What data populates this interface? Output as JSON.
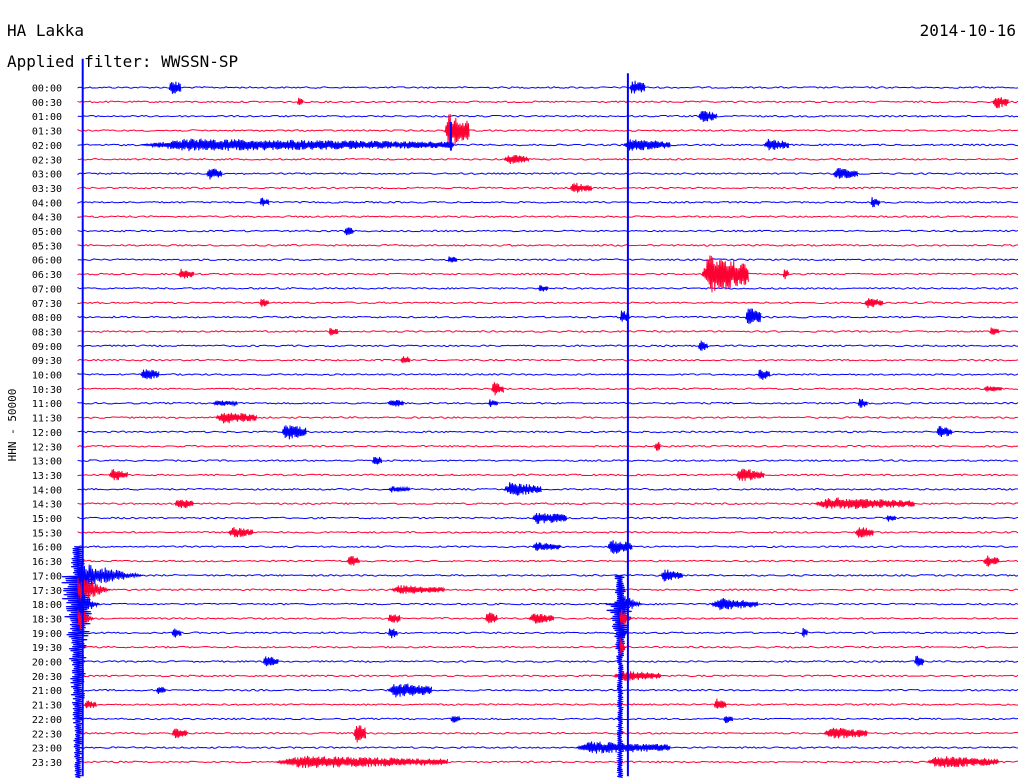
{
  "header": {
    "station": "HA Lakka",
    "date": "2014-10-16",
    "filter": "Applied filter: WWSSN-SP"
  },
  "chart_data": {
    "type": "line",
    "title": "",
    "ylabel": "HHN - 50000",
    "xlabel": "",
    "row_labels": [
      "00:00",
      "00:30",
      "01:00",
      "01:30",
      "02:00",
      "02:30",
      "03:00",
      "03:30",
      "04:00",
      "04:30",
      "05:00",
      "05:30",
      "06:00",
      "06:30",
      "07:00",
      "07:30",
      "08:00",
      "08:30",
      "09:00",
      "09:30",
      "10:00",
      "10:30",
      "11:00",
      "11:30",
      "12:00",
      "12:30",
      "13:00",
      "13:30",
      "14:00",
      "14:30",
      "15:00",
      "15:30",
      "16:00",
      "16:30",
      "17:00",
      "17:30",
      "18:00",
      "18:30",
      "19:00",
      "19:30",
      "20:00",
      "20:30",
      "21:00",
      "21:30",
      "22:00",
      "22:30",
      "23:00",
      "23:30"
    ],
    "row_colors": [
      "#0000ff",
      "#ff0033"
    ],
    "row_minutes": 30,
    "grid": false,
    "events": [
      {
        "row": 0,
        "minute": 2.9,
        "amp": 1.0,
        "dur": 0.4
      },
      {
        "row": 0,
        "minute": 17.6,
        "amp": 1.0,
        "dur": 0.5
      },
      {
        "row": 1,
        "minute": 7.0,
        "amp": 0.7,
        "dur": 0.2
      },
      {
        "row": 1,
        "minute": 29.2,
        "amp": 0.9,
        "dur": 0.5
      },
      {
        "row": 2,
        "minute": 19.8,
        "amp": 0.8,
        "dur": 0.6
      },
      {
        "row": 3,
        "minute": 11.7,
        "amp": 2.2,
        "dur": 0.8
      },
      {
        "row": 4,
        "minute": 2.0,
        "amp": 0.8,
        "dur": 10.0
      },
      {
        "row": 4,
        "minute": 17.4,
        "amp": 0.8,
        "dur": 1.5
      },
      {
        "row": 4,
        "minute": 21.9,
        "amp": 0.8,
        "dur": 0.8
      },
      {
        "row": 5,
        "minute": 13.6,
        "amp": 0.7,
        "dur": 0.8
      },
      {
        "row": 6,
        "minute": 4.1,
        "amp": 0.8,
        "dur": 0.5
      },
      {
        "row": 6,
        "minute": 24.1,
        "amp": 0.8,
        "dur": 0.8
      },
      {
        "row": 7,
        "minute": 15.7,
        "amp": 0.7,
        "dur": 0.7
      },
      {
        "row": 8,
        "minute": 5.8,
        "amp": 0.7,
        "dur": 0.3
      },
      {
        "row": 8,
        "minute": 25.3,
        "amp": 0.7,
        "dur": 0.3
      },
      {
        "row": 10,
        "minute": 8.5,
        "amp": 0.6,
        "dur": 0.3
      },
      {
        "row": 12,
        "minute": 11.8,
        "amp": 0.5,
        "dur": 0.3
      },
      {
        "row": 13,
        "minute": 3.2,
        "amp": 0.7,
        "dur": 0.5
      },
      {
        "row": 13,
        "minute": 19.9,
        "amp": 2.5,
        "dur": 1.5
      },
      {
        "row": 13,
        "minute": 22.5,
        "amp": 0.8,
        "dur": 0.2
      },
      {
        "row": 14,
        "minute": 14.7,
        "amp": 0.5,
        "dur": 0.3
      },
      {
        "row": 15,
        "minute": 5.8,
        "amp": 0.6,
        "dur": 0.3
      },
      {
        "row": 15,
        "minute": 25.1,
        "amp": 0.7,
        "dur": 0.6
      },
      {
        "row": 16,
        "minute": 17.3,
        "amp": 0.9,
        "dur": 0.3
      },
      {
        "row": 16,
        "minute": 21.3,
        "amp": 1.3,
        "dur": 0.5
      },
      {
        "row": 17,
        "minute": 8.0,
        "amp": 0.6,
        "dur": 0.3
      },
      {
        "row": 17,
        "minute": 29.1,
        "amp": 0.7,
        "dur": 0.3
      },
      {
        "row": 18,
        "minute": 19.8,
        "amp": 0.8,
        "dur": 0.3
      },
      {
        "row": 19,
        "minute": 10.3,
        "amp": 0.7,
        "dur": 0.3
      },
      {
        "row": 20,
        "minute": 2.0,
        "amp": 0.8,
        "dur": 0.6
      },
      {
        "row": 20,
        "minute": 21.7,
        "amp": 0.8,
        "dur": 0.4
      },
      {
        "row": 21,
        "minute": 13.2,
        "amp": 0.9,
        "dur": 0.4
      },
      {
        "row": 21,
        "minute": 28.9,
        "amp": 0.4,
        "dur": 0.6
      },
      {
        "row": 22,
        "minute": 4.3,
        "amp": 0.4,
        "dur": 0.8
      },
      {
        "row": 22,
        "minute": 9.9,
        "amp": 0.6,
        "dur": 0.5
      },
      {
        "row": 22,
        "minute": 13.1,
        "amp": 0.5,
        "dur": 0.3
      },
      {
        "row": 22,
        "minute": 24.9,
        "amp": 0.7,
        "dur": 0.3
      },
      {
        "row": 23,
        "minute": 4.4,
        "amp": 0.8,
        "dur": 1.3
      },
      {
        "row": 24,
        "minute": 6.5,
        "amp": 1.1,
        "dur": 0.8
      },
      {
        "row": 24,
        "minute": 27.4,
        "amp": 0.8,
        "dur": 0.5
      },
      {
        "row": 25,
        "minute": 18.4,
        "amp": 0.8,
        "dur": 0.2
      },
      {
        "row": 26,
        "minute": 9.4,
        "amp": 0.7,
        "dur": 0.3
      },
      {
        "row": 27,
        "minute": 1.0,
        "amp": 0.8,
        "dur": 0.6
      },
      {
        "row": 27,
        "minute": 21.0,
        "amp": 0.9,
        "dur": 0.9
      },
      {
        "row": 28,
        "minute": 9.9,
        "amp": 0.4,
        "dur": 0.7
      },
      {
        "row": 28,
        "minute": 13.6,
        "amp": 0.9,
        "dur": 1.2
      },
      {
        "row": 29,
        "minute": 3.1,
        "amp": 0.8,
        "dur": 0.6
      },
      {
        "row": 29,
        "minute": 23.5,
        "amp": 0.8,
        "dur": 3.2
      },
      {
        "row": 30,
        "minute": 14.5,
        "amp": 0.8,
        "dur": 1.1
      },
      {
        "row": 30,
        "minute": 25.8,
        "amp": 0.5,
        "dur": 0.3
      },
      {
        "row": 31,
        "minute": 4.8,
        "amp": 0.7,
        "dur": 0.8
      },
      {
        "row": 31,
        "minute": 24.8,
        "amp": 0.8,
        "dur": 0.6
      },
      {
        "row": 32,
        "minute": 14.5,
        "amp": 0.6,
        "dur": 0.9
      },
      {
        "row": 32,
        "minute": 16.9,
        "amp": 1.0,
        "dur": 0.8
      },
      {
        "row": 33,
        "minute": 8.6,
        "amp": 0.8,
        "dur": 0.4
      },
      {
        "row": 33,
        "minute": 28.9,
        "amp": 0.8,
        "dur": 0.5
      },
      {
        "row": 34,
        "minute": 18.6,
        "amp": 0.8,
        "dur": 0.7
      },
      {
        "row": 35,
        "minute": 10.0,
        "amp": 0.6,
        "dur": 1.7
      },
      {
        "row": 36,
        "minute": 20.2,
        "amp": 0.8,
        "dur": 1.5
      },
      {
        "row": 37,
        "minute": 9.9,
        "amp": 0.8,
        "dur": 0.4
      },
      {
        "row": 37,
        "minute": 13.0,
        "amp": 0.9,
        "dur": 0.4
      },
      {
        "row": 37,
        "minute": 14.4,
        "amp": 0.7,
        "dur": 0.8
      },
      {
        "row": 38,
        "minute": 3.0,
        "amp": 0.7,
        "dur": 0.3
      },
      {
        "row": 38,
        "minute": 9.9,
        "amp": 0.8,
        "dur": 0.3
      },
      {
        "row": 38,
        "minute": 23.1,
        "amp": 0.7,
        "dur": 0.2
      },
      {
        "row": 40,
        "minute": 5.9,
        "amp": 0.8,
        "dur": 0.5
      },
      {
        "row": 40,
        "minute": 26.7,
        "amp": 0.8,
        "dur": 0.3
      },
      {
        "row": 41,
        "minute": 17.1,
        "amp": 0.7,
        "dur": 1.5
      },
      {
        "row": 42,
        "minute": 2.5,
        "amp": 0.6,
        "dur": 0.3
      },
      {
        "row": 42,
        "minute": 9.9,
        "amp": 1.0,
        "dur": 1.4
      },
      {
        "row": 43,
        "minute": 0.2,
        "amp": 0.6,
        "dur": 0.4
      },
      {
        "row": 43,
        "minute": 20.3,
        "amp": 0.8,
        "dur": 0.4
      },
      {
        "row": 44,
        "minute": 11.9,
        "amp": 0.7,
        "dur": 0.3
      },
      {
        "row": 44,
        "minute": 20.6,
        "amp": 0.6,
        "dur": 0.3
      },
      {
        "row": 45,
        "minute": 3.0,
        "amp": 0.8,
        "dur": 0.5
      },
      {
        "row": 45,
        "minute": 8.8,
        "amp": 1.3,
        "dur": 0.4
      },
      {
        "row": 45,
        "minute": 23.8,
        "amp": 0.8,
        "dur": 1.4
      },
      {
        "row": 46,
        "minute": 15.9,
        "amp": 0.8,
        "dur": 3.0
      },
      {
        "row": 47,
        "minute": 6.3,
        "amp": 0.8,
        "dur": 5.5
      },
      {
        "row": 47,
        "minute": 27.1,
        "amp": 0.8,
        "dur": 2.3
      }
    ],
    "quakes": [
      {
        "start_row": 34,
        "minute": 0.0,
        "amp": 2.0,
        "decay_rows": 2.6
      },
      {
        "start_row": 36,
        "minute": 17.3,
        "amp": 1.6,
        "decay_rows": 0.9
      }
    ],
    "spikes": [
      {
        "minute": 0.15,
        "top_row": -2,
        "bottom_row": 48
      },
      {
        "minute": 17.55,
        "top_row": -1,
        "bottom_row": 48
      },
      {
        "minute": 11.9,
        "top_row": 2.4,
        "bottom_row": 4.4
      }
    ]
  }
}
